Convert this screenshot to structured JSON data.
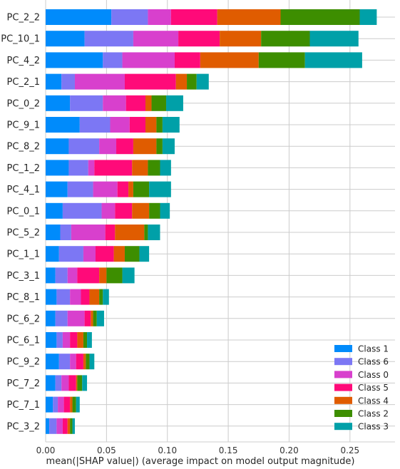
{
  "chart_data": {
    "type": "bar",
    "orientation": "horizontal",
    "stacked": true,
    "title": "",
    "xlabel": "mean(|SHAP value|) (average impact on model output magnitude)",
    "ylabel": "",
    "xlim": [
      0,
      0.287
    ],
    "xticks": [
      "0.00",
      "0.05",
      "0.10",
      "0.15",
      "0.20",
      "0.25"
    ],
    "xtick_values": [
      0,
      0.05,
      0.1,
      0.15,
      0.2,
      0.25
    ],
    "grid": true,
    "legend_position": "lower-right",
    "categories": [
      "PC_2_2",
      "PC_10_1",
      "PC_4_2",
      "PC_2_1",
      "PC_0_2",
      "PC_9_1",
      "PC_8_2",
      "PC_1_2",
      "PC_4_1",
      "PC_0_1",
      "PC_5_2",
      "PC_1_1",
      "PC_3_1",
      "PC_8_1",
      "PC_6_2",
      "PC_6_1",
      "PC_9_2",
      "PC_7_2",
      "PC_7_1",
      "PC_3_2"
    ],
    "series": [
      {
        "name": "Class 1",
        "color": "#008bfb",
        "values": [
          0.054,
          0.032,
          0.047,
          0.013,
          0.02,
          0.028,
          0.019,
          0.019,
          0.018,
          0.014,
          0.012,
          0.011,
          0.008,
          0.009,
          0.008,
          0.009,
          0.011,
          0.008,
          0.006,
          0.003
        ]
      },
      {
        "name": "Class 6",
        "color": "#7c77f4",
        "values": [
          0.03,
          0.04,
          0.016,
          0.011,
          0.027,
          0.025,
          0.025,
          0.016,
          0.021,
          0.032,
          0.009,
          0.02,
          0.01,
          0.011,
          0.01,
          0.005,
          0.009,
          0.005,
          0.004,
          0.006
        ]
      },
      {
        "name": "Class 0",
        "color": "#d840cd",
        "values": [
          0.019,
          0.037,
          0.043,
          0.041,
          0.019,
          0.016,
          0.014,
          0.005,
          0.02,
          0.011,
          0.028,
          0.01,
          0.008,
          0.009,
          0.014,
          0.006,
          0.005,
          0.006,
          0.005,
          0.005
        ]
      },
      {
        "name": "Class 5",
        "color": "#ff0a79",
        "values": [
          0.038,
          0.034,
          0.021,
          0.042,
          0.016,
          0.013,
          0.014,
          0.031,
          0.009,
          0.014,
          0.008,
          0.015,
          0.018,
          0.007,
          0.005,
          0.006,
          0.006,
          0.006,
          0.005,
          0.004
        ]
      },
      {
        "name": "Class 4",
        "color": "#e05c00",
        "values": [
          0.052,
          0.034,
          0.048,
          0.009,
          0.005,
          0.009,
          0.019,
          0.013,
          0.004,
          0.014,
          0.024,
          0.009,
          0.006,
          0.008,
          0.002,
          0.005,
          0.002,
          0.001,
          0.002,
          0.002
        ]
      },
      {
        "name": "Class 2",
        "color": "#3d8e00",
        "values": [
          0.065,
          0.04,
          0.038,
          0.008,
          0.012,
          0.005,
          0.005,
          0.01,
          0.013,
          0.009,
          0.003,
          0.012,
          0.013,
          0.003,
          0.003,
          0.003,
          0.003,
          0.004,
          0.003,
          0.002
        ]
      },
      {
        "name": "Class 3",
        "color": "#00a0a8",
        "values": [
          0.014,
          0.04,
          0.047,
          0.01,
          0.014,
          0.014,
          0.01,
          0.009,
          0.018,
          0.008,
          0.01,
          0.008,
          0.01,
          0.005,
          0.006,
          0.004,
          0.004,
          0.004,
          0.003,
          0.002
        ]
      }
    ]
  }
}
